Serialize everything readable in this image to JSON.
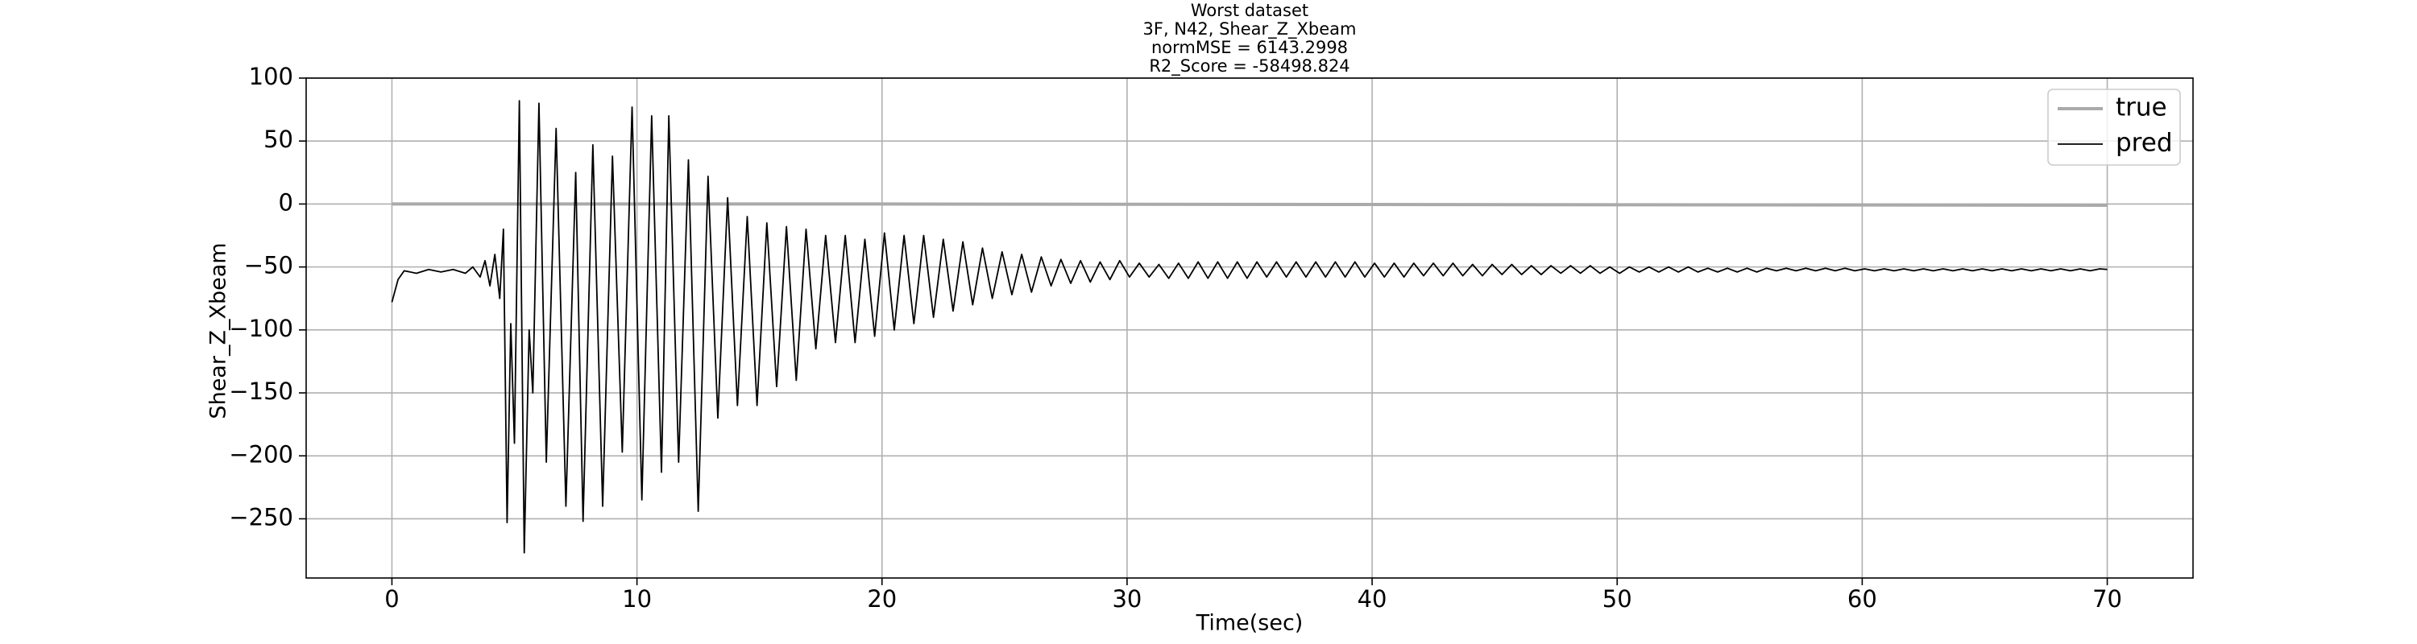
{
  "chart_data": {
    "type": "line",
    "title": [
      "Worst dataset",
      "3F, N42, Shear_Z_Xbeam",
      "normMSE = 6143.2998",
      "R2_Score = -58498.824"
    ],
    "xlabel": "Time(sec)",
    "ylabel": "Shear_Z_Xbeam",
    "xlim": [
      -3.5,
      73.5
    ],
    "xticks": [
      0,
      10,
      20,
      30,
      40,
      50,
      60,
      70
    ],
    "ylim": [
      -297,
      100
    ],
    "yticks": [
      {
        "value": -250,
        "label": "−250"
      },
      {
        "value": -200,
        "label": "−200"
      },
      {
        "value": -150,
        "label": "−150"
      },
      {
        "value": -100,
        "label": "−100"
      },
      {
        "value": -50,
        "label": "−50"
      },
      0,
      50,
      100
    ],
    "grid": true,
    "legend": "upper right",
    "series": [
      {
        "name": "true",
        "color": "#aaaaaa",
        "width": 4,
        "x": [
          0,
          10,
          20,
          30,
          40,
          50,
          60,
          70
        ],
        "values": [
          0,
          0,
          0,
          -0.2,
          -0.4,
          -0.6,
          -0.8,
          -1
        ]
      },
      {
        "name": "pred",
        "color": "#000000",
        "width": 1.8,
        "x": [
          0,
          0.25,
          0.5,
          1,
          1.5,
          2,
          2.5,
          3,
          3.3,
          3.6,
          3.8,
          4,
          4.2,
          4.4,
          4.55,
          4.7,
          4.85,
          5,
          5.2,
          5.4,
          5.6,
          5.75,
          6,
          6.3,
          6.7,
          7.1,
          7.5,
          7.8,
          8.2,
          8.6,
          9,
          9.4,
          9.8,
          10.2,
          10.6,
          11,
          11.3,
          11.7,
          12.1,
          12.5,
          12.9,
          13.3,
          13.7,
          14.1,
          14.5,
          14.9,
          15.3,
          15.7,
          16.1,
          16.5,
          16.9,
          17.3,
          17.7,
          18.1,
          18.5,
          18.9,
          19.3,
          19.7,
          20.1,
          20.5,
          20.9,
          21.3,
          21.7,
          22.1,
          22.5,
          22.9,
          23.3,
          23.7,
          24.1,
          24.5,
          24.9,
          25.3,
          25.7,
          26.1,
          26.5,
          26.9,
          27.3,
          27.7,
          28.1,
          28.5,
          28.9,
          29.3,
          29.7,
          30.1,
          30.5,
          30.9,
          31.3,
          31.7,
          32.1,
          32.5,
          32.9,
          33.3,
          33.7,
          34.1,
          34.5,
          34.9,
          35.3,
          35.7,
          36.1,
          36.5,
          36.9,
          37.3,
          37.7,
          38.1,
          38.5,
          38.9,
          39.3,
          39.7,
          40.1,
          40.5,
          40.9,
          41.3,
          41.7,
          42.1,
          42.5,
          42.9,
          43.3,
          43.7,
          44.1,
          44.5,
          44.9,
          45.3,
          45.7,
          46.1,
          46.5,
          46.9,
          47.3,
          47.7,
          48.1,
          48.5,
          48.9,
          49.3,
          49.7,
          50.1,
          50.5,
          50.9,
          51.3,
          51.7,
          52.1,
          52.5,
          52.9,
          53.3,
          53.7,
          54.1,
          54.5,
          54.9,
          55.3,
          55.7,
          56.1,
          56.5,
          56.9,
          57.3,
          57.7,
          58.1,
          58.5,
          58.9,
          59.3,
          59.7,
          60.1,
          60.5,
          60.9,
          61.3,
          61.7,
          62.1,
          62.5,
          62.9,
          63.3,
          63.7,
          64.1,
          64.5,
          64.9,
          65.3,
          65.7,
          66.1,
          66.5,
          66.9,
          67.3,
          67.7,
          68.1,
          68.5,
          68.9,
          69.3,
          69.7,
          70
        ],
        "values": [
          -78,
          -60,
          -53,
          -55,
          -52,
          -54,
          -52,
          -55,
          -50,
          -58,
          -45,
          -65,
          -40,
          -75,
          -20,
          -253,
          -95,
          -190,
          82,
          -277,
          -100,
          -150,
          80,
          -205,
          60,
          -240,
          25,
          -252,
          47,
          -240,
          38,
          -197,
          77,
          -235,
          70,
          -213,
          70,
          -205,
          35,
          -244,
          22,
          -170,
          5,
          -160,
          -10,
          -160,
          -15,
          -145,
          -18,
          -140,
          -20,
          -115,
          -25,
          -110,
          -25,
          -110,
          -28,
          -105,
          -23,
          -100,
          -25,
          -95,
          -25,
          -90,
          -28,
          -85,
          -30,
          -80,
          -35,
          -75,
          -38,
          -72,
          -40,
          -70,
          -42,
          -65,
          -44,
          -63,
          -45,
          -62,
          -46,
          -60,
          -45,
          -58,
          -47,
          -58,
          -48,
          -59,
          -47,
          -59,
          -46,
          -59,
          -46,
          -59,
          -46,
          -59,
          -46,
          -58,
          -46,
          -58,
          -46,
          -58,
          -46,
          -58,
          -46,
          -58,
          -46,
          -58,
          -47,
          -58,
          -47,
          -58,
          -47,
          -57,
          -47,
          -57,
          -47,
          -57,
          -48,
          -57,
          -48,
          -56,
          -48,
          -56,
          -49,
          -56,
          -49,
          -55,
          -49,
          -55,
          -49,
          -55,
          -50,
          -55,
          -50,
          -54,
          -50,
          -54,
          -50,
          -54,
          -50,
          -54,
          -51,
          -54,
          -51,
          -54,
          -51,
          -54,
          -51,
          -53,
          -51,
          -53,
          -51,
          -53,
          -51,
          -53,
          -51,
          -53,
          -51.5,
          -53,
          -51.5,
          -53,
          -51.5,
          -53,
          -51.5,
          -53,
          -51.5,
          -53,
          -51.5,
          -53,
          -51.5,
          -53,
          -51.5,
          -53,
          -51.5,
          -53,
          -51.5,
          -53,
          -51.5,
          -53,
          -51.5,
          -53,
          -51.5,
          -52
        ]
      }
    ]
  }
}
